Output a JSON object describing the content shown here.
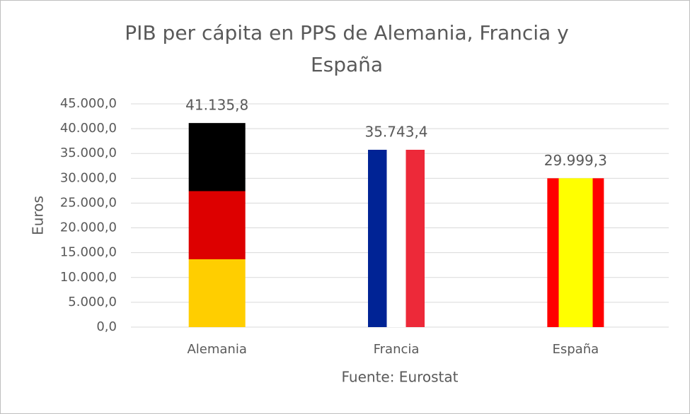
{
  "chart_data": {
    "type": "bar",
    "title": "PIB per cápita en PPS de Alemania, Francia y España",
    "y_label": "Euros",
    "x_label": "Fuente: Eurostat",
    "categories": [
      "Alemania",
      "Francia",
      "España"
    ],
    "values": [
      41135.8,
      35743.4,
      29999.3
    ],
    "value_labels": [
      "41.135,8",
      "35.743,4",
      "29.999,3"
    ],
    "ylim": [
      0,
      45000
    ],
    "yticks": [
      {
        "value": 0,
        "label": "0,0"
      },
      {
        "value": 5000,
        "label": "5.000,0"
      },
      {
        "value": 10000,
        "label": "10.000,0"
      },
      {
        "value": 15000,
        "label": "15.000,0"
      },
      {
        "value": 20000,
        "label": "20.000,0"
      },
      {
        "value": 25000,
        "label": "25.000,0"
      },
      {
        "value": 30000,
        "label": "30.000,0"
      },
      {
        "value": 35000,
        "label": "35.000,0"
      },
      {
        "value": 40000,
        "label": "40.000,0"
      },
      {
        "value": 45000,
        "label": "45.000,0"
      }
    ],
    "grid": true
  }
}
